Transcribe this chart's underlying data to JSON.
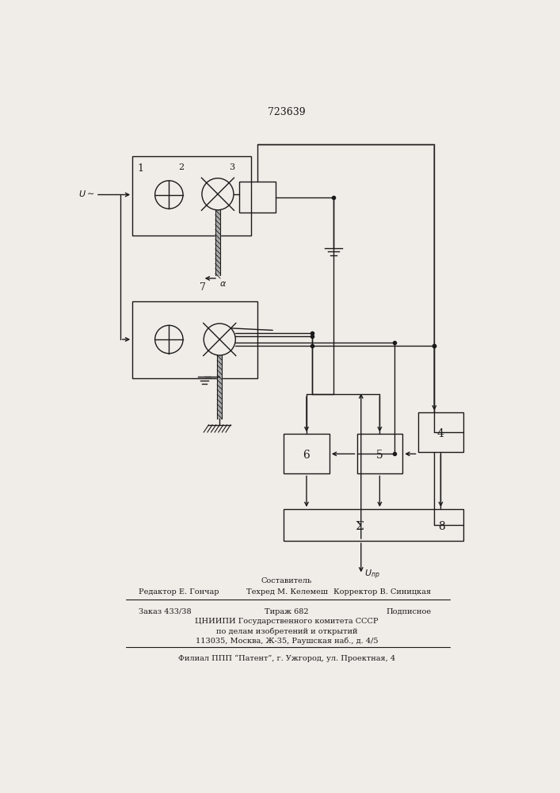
{
  "title": "723639",
  "bg_color": "#f0ede8",
  "line_color": "#1a1a1a",
  "lw": 1.0,
  "label1": "1",
  "label2": "2",
  "label3": "3",
  "label7": "7",
  "label4": "4",
  "label5": "5",
  "label6": "6",
  "label8": "8",
  "label_sigma": "Σ",
  "label_alpha": "α",
  "footer_line1_center": "Составитель",
  "footer_line2_left": "Редактор Е. Гончар",
  "footer_line2_center": "Техред М. Келемеш",
  "footer_line2_right": "Корректор В. Синицкая",
  "footer_line3_left": "Заказ 433/38",
  "footer_line3_center": "Тираж 682",
  "footer_line3_right": "Подписное",
  "footer_line4": "ЦНИИПИ Государственного комитета СССР",
  "footer_line5": "по делам изобретений и открытий",
  "footer_line6": "113035, Москва, Ж-35, Раушская наб., д. 4/5",
  "footer_line7": "Филиал ППП “Патент”, г. Ужгород, ул. Проектная, 4"
}
